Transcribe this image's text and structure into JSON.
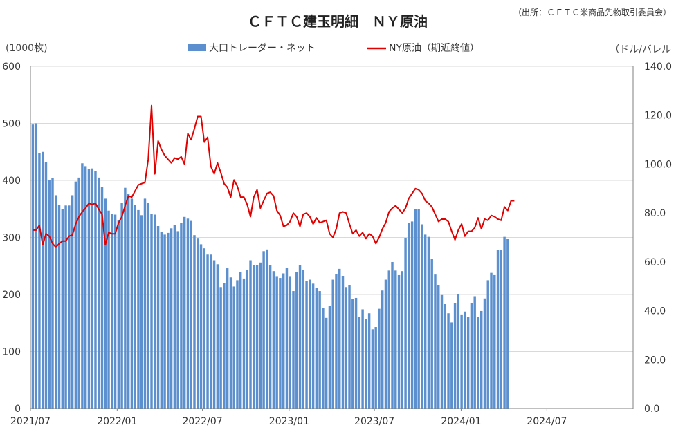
{
  "chart_data": {
    "type": "bar+line",
    "title": "ＣＦＴＣ建玉明細　ＮＹ原油",
    "source": "（出所：ＣＦＴＣ米商品先物取引委員会）",
    "left_unit": "(1000枚)",
    "right_unit": "（ドル/バレル",
    "legend": {
      "position": "top",
      "bar_label": "大口トレーダー・ネット",
      "line_label": "NY原油（期近終値）"
    },
    "colors": {
      "bar": "#5b8fce",
      "line": "#e00000"
    },
    "grid": true,
    "y_left": {
      "min": 0,
      "max": 600,
      "ticks": [
        "0",
        "100",
        "200",
        "300",
        "400",
        "500",
        "600"
      ]
    },
    "y_right": {
      "min": 0,
      "max": 140,
      "ticks": [
        "0.0",
        "20.0",
        "40.0",
        "60.0",
        "80.0",
        "100.0",
        "120.0",
        "140.0"
      ]
    },
    "x_axis": {
      "start": "2021-07-01",
      "end": "2024-12-31",
      "ticks": [
        {
          "date": "2021-07-01",
          "label": "2021/07"
        },
        {
          "date": "2022-01-01",
          "label": "2022/01"
        },
        {
          "date": "2022-07-01",
          "label": "2022/07"
        },
        {
          "date": "2023-01-01",
          "label": "2023/01"
        },
        {
          "date": "2023-07-01",
          "label": "2023/07"
        },
        {
          "date": "2024-01-01",
          "label": "2024/01"
        },
        {
          "date": "2024-07-01",
          "label": "2024/07"
        }
      ]
    },
    "bar_series": {
      "name": "大口トレーダー・ネット",
      "start": "2021-07-06",
      "interval_days": 7,
      "values": [
        498,
        500,
        448,
        450,
        432,
        400,
        404,
        374,
        357,
        350,
        356,
        356,
        374,
        398,
        405,
        430,
        425,
        420,
        421,
        416,
        405,
        388,
        368,
        347,
        341,
        340,
        330,
        360,
        387,
        376,
        368,
        357,
        348,
        339,
        368,
        361,
        341,
        340,
        320,
        310,
        305,
        308,
        316,
        322,
        311,
        325,
        336,
        333,
        329,
        304,
        298,
        288,
        281,
        270,
        270,
        260,
        253,
        213,
        220,
        246,
        230,
        214,
        225,
        240,
        228,
        243,
        260,
        251,
        251,
        256,
        276,
        279,
        251,
        241,
        231,
        229,
        237,
        247,
        231,
        206,
        240,
        251,
        243,
        224,
        226,
        219,
        212,
        206,
        176,
        159,
        180,
        226,
        236,
        245,
        232,
        213,
        216,
        192,
        194,
        160,
        174,
        157,
        167,
        139,
        143,
        175,
        207,
        226,
        242,
        257,
        242,
        234,
        241,
        299,
        326,
        328,
        350,
        350,
        323,
        305,
        301,
        263,
        235,
        216,
        199,
        183,
        167,
        151,
        185,
        200,
        165,
        170,
        160,
        185,
        197,
        160,
        171,
        193,
        225,
        238,
        234,
        278,
        278,
        301,
        297
      ]
    },
    "line_series": {
      "name": "NY原油（期近終値）",
      "start": "2021-07-06",
      "interval_days": 7,
      "values": [
        73.0,
        73.0,
        75.0,
        67.0,
        71.5,
        70.5,
        67.5,
        66.0,
        67.5,
        68.5,
        68.5,
        70.5,
        71.0,
        75.5,
        78.5,
        80.5,
        82.0,
        84.0,
        83.5,
        84.0,
        81.5,
        79.5,
        67.0,
        72.0,
        71.5,
        71.5,
        76.0,
        78.5,
        83.0,
        87.0,
        86.5,
        89.0,
        91.5,
        92.0,
        92.5,
        102.0,
        124.0,
        96.0,
        109.5,
        106.0,
        103.5,
        102.0,
        100.5,
        102.5,
        102.0,
        103.0,
        100.0,
        112.5,
        110.0,
        114.5,
        119.5,
        119.5,
        109.0,
        111.0,
        99.0,
        96.0,
        100.5,
        96.5,
        92.0,
        90.5,
        86.5,
        93.5,
        91.0,
        86.5,
        86.5,
        83.5,
        78.5,
        86.5,
        89.5,
        82.0,
        85.0,
        88.0,
        88.5,
        87.0,
        81.0,
        79.0,
        74.5,
        75.0,
        76.5,
        80.0,
        78.5,
        74.5,
        79.5,
        80.0,
        78.5,
        75.5,
        78.0,
        76.0,
        76.5,
        77.0,
        71.5,
        70.0,
        73.5,
        80.0,
        80.5,
        80.0,
        75.5,
        71.5,
        73.0,
        70.5,
        72.0,
        69.5,
        71.5,
        70.5,
        67.5,
        70.0,
        73.5,
        76.0,
        80.5,
        82.0,
        83.0,
        81.5,
        80.0,
        82.0,
        86.0,
        88.0,
        90.0,
        89.5,
        88.0,
        85.0,
        84.0,
        82.5,
        79.5,
        76.5,
        77.5,
        77.5,
        76.5,
        72.5,
        69.0,
        73.0,
        75.5,
        70.5,
        72.5,
        72.5,
        74.0,
        78.0,
        73.5,
        77.5,
        77.0,
        79.0,
        78.5,
        77.5,
        77.0,
        82.5,
        81.0,
        85.0,
        85.0
      ]
    }
  }
}
